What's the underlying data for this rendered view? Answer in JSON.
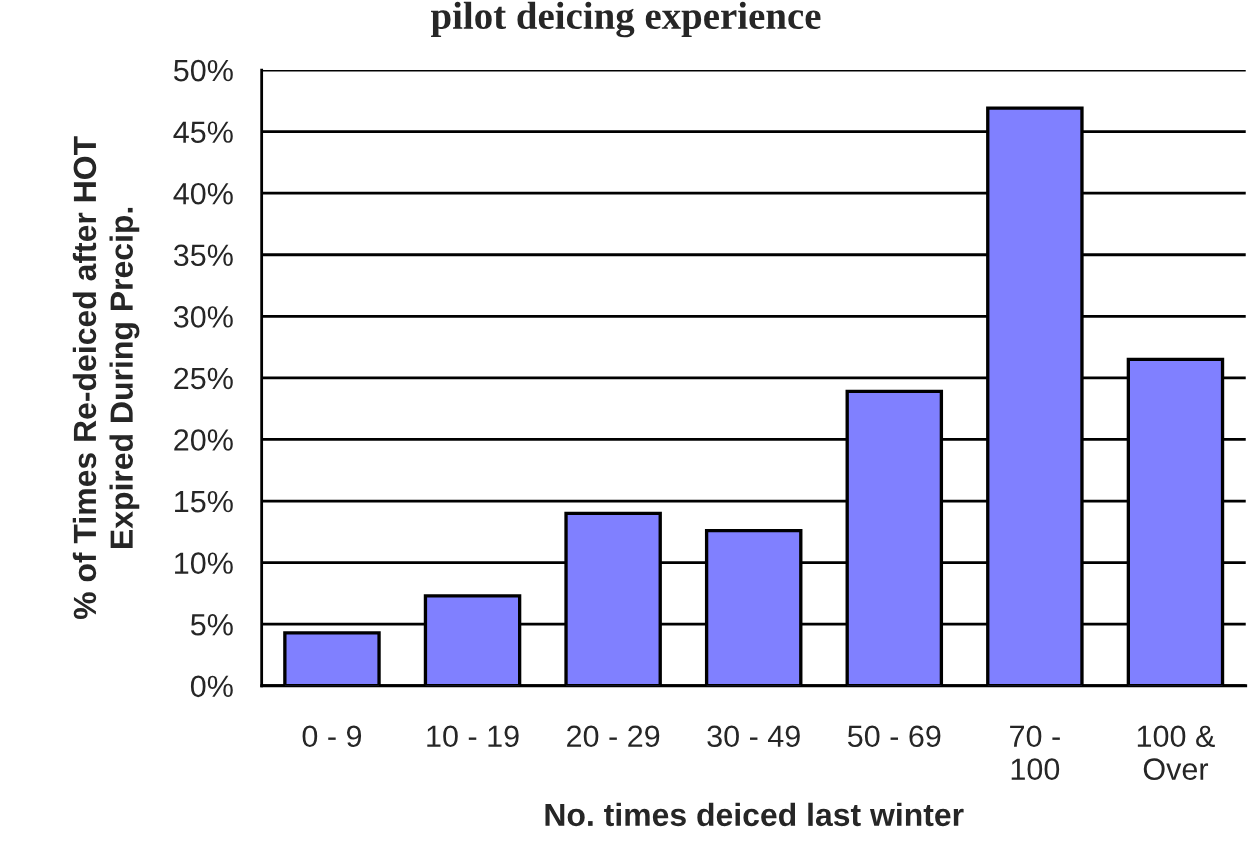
{
  "chart_data": {
    "type": "bar",
    "title": "pilot deicing experience",
    "xlabel": "No. times deiced last winter",
    "ylabel": "% of Times Re-deiced after HOT\nExpired During Precip.",
    "categories": [
      "0 - 9",
      "10 - 19",
      "20 - 29",
      "30 - 49",
      "50 - 69",
      "70 -\n100",
      "100 &\nOver"
    ],
    "values": [
      4.3,
      7.3,
      14.0,
      12.6,
      23.9,
      46.9,
      26.5
    ],
    "color": "#8080ff",
    "ylim": [
      0,
      50
    ],
    "yticks": [
      {
        "value": 0,
        "label": "0%"
      },
      {
        "value": 5,
        "label": "5%"
      },
      {
        "value": 10,
        "label": "10%"
      },
      {
        "value": 15,
        "label": "15%"
      },
      {
        "value": 20,
        "label": "20%"
      },
      {
        "value": 25,
        "label": "25%"
      },
      {
        "value": 30,
        "label": "30%"
      },
      {
        "value": 35,
        "label": "35%"
      },
      {
        "value": 40,
        "label": "40%"
      },
      {
        "value": 45,
        "label": "45%"
      },
      {
        "value": 50,
        "label": "50%"
      }
    ],
    "grid": "y"
  }
}
